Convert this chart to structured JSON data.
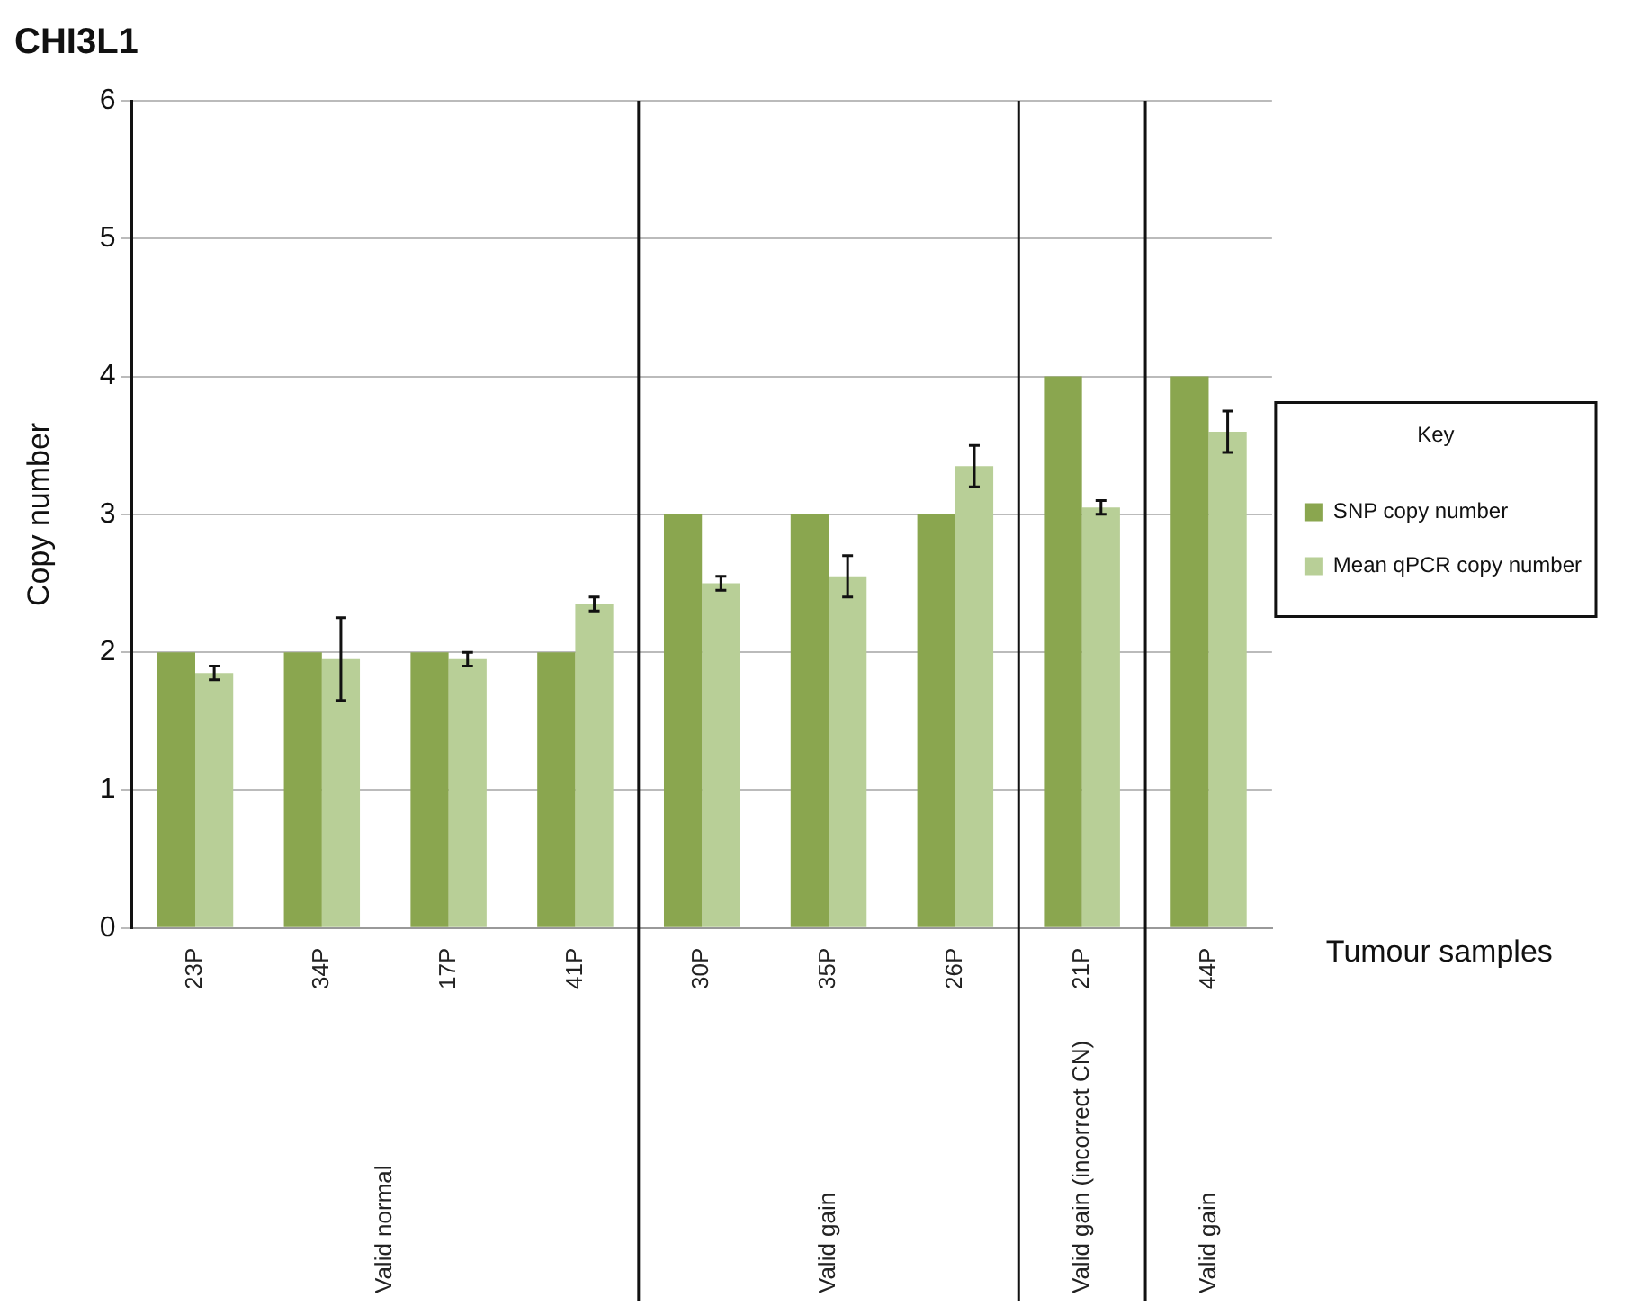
{
  "chart_data": {
    "type": "bar",
    "title": "CHI3L1",
    "xlabel": "Tumour samples",
    "ylabel": "Copy number",
    "legend_title": "Key",
    "categories": [
      "23P",
      "34P",
      "17P",
      "41P",
      "30P",
      "35P",
      "26P",
      "21P",
      "44P"
    ],
    "series": [
      {
        "name": "SNP copy number",
        "color": "#8aa64f",
        "values": [
          2,
          2,
          2,
          2,
          3,
          3,
          3,
          4,
          4
        ]
      },
      {
        "name": "Mean qPCR copy number",
        "color": "#b8cf97",
        "values": [
          1.85,
          1.95,
          1.95,
          2.35,
          2.5,
          2.55,
          3.35,
          3.05,
          3.6
        ],
        "errors": [
          [
            1.8,
            1.9
          ],
          [
            1.65,
            2.25
          ],
          [
            1.9,
            2.0
          ],
          [
            2.3,
            2.4
          ],
          [
            2.45,
            2.55
          ],
          [
            2.4,
            2.7
          ],
          [
            3.2,
            3.5
          ],
          [
            3.0,
            3.1
          ],
          [
            3.45,
            3.75
          ]
        ]
      }
    ],
    "annotations": [
      "Valid normal",
      "Valid gain",
      "Valid gain (incorrect CN)",
      "Valid gain"
    ],
    "ylim": [
      0,
      6
    ],
    "yticks": [
      0,
      1,
      2,
      3,
      4,
      5,
      6
    ],
    "grid": "y",
    "legend": "right"
  }
}
